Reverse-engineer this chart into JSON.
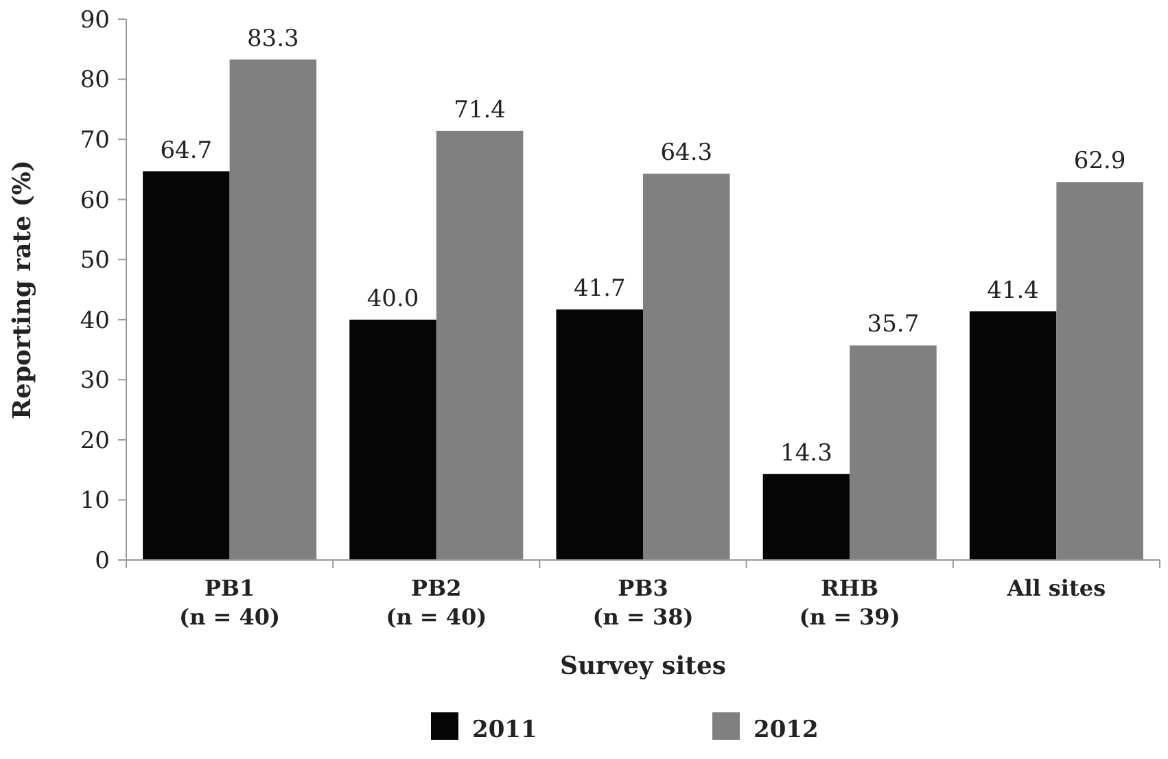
{
  "chart_data": {
    "type": "bar",
    "xlabel": "Survey sites",
    "ylabel": "Reporting rate (%)",
    "categories": [
      "PB1\n(n = 40)",
      "PB2\n(n = 40)",
      "PB3\n(n = 38)",
      "RHB\n(n = 39)",
      "All sites"
    ],
    "series": [
      {
        "name": "2011",
        "color": "#050505",
        "values": [
          64.7,
          40.0,
          41.7,
          14.3,
          41.4
        ],
        "value_labels": [
          "64.7",
          "40.0",
          "41.7",
          "14.3",
          "41.4"
        ]
      },
      {
        "name": "2012",
        "color": "#808080",
        "values": [
          83.3,
          71.4,
          64.3,
          35.7,
          62.9
        ],
        "value_labels": [
          "83.3",
          "71.4",
          "64.3",
          "35.7",
          "62.9"
        ]
      }
    ],
    "ylim": [
      0,
      90
    ],
    "yticks": [
      0,
      10,
      20,
      30,
      40,
      50,
      60,
      70,
      80,
      90
    ],
    "grid": false,
    "legend": "bottom"
  }
}
